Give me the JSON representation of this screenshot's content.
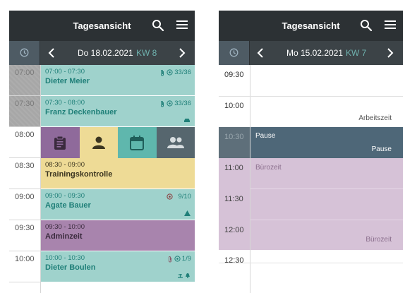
{
  "colors": {
    "topbar": "#2c3134",
    "navbar": "#3c4347",
    "kw": "#6fb1ae",
    "teal_appt": "#9fd2cc",
    "yellow_appt": "#eedb96",
    "purple_appt": "#a884ad",
    "pause_block": "#4e6778",
    "buero_block": "#d6c2d7"
  },
  "left": {
    "title": "Tagesansicht",
    "date": "Do 18.02.2021",
    "kw": "KW 8",
    "times": [
      "07:00",
      "07:30",
      "08:00",
      "08:30",
      "09:00",
      "09:30",
      "10:00"
    ],
    "appointments": [
      {
        "time": "07:00 - 07:30",
        "name": "Dieter Meier",
        "count": "33/36",
        "color": "teal"
      },
      {
        "time": "07:30 - 08:00",
        "name": "Franz Deckenbauer",
        "count": "33/36",
        "color": "teal"
      },
      {
        "time": "08:30 - 09:00",
        "name": "Trainingskontrolle",
        "count": "",
        "color": "yellow"
      },
      {
        "time": "09:00 - 09:30",
        "name": "Agate Bauer",
        "count": "9/10",
        "color": "teal"
      },
      {
        "time": "09:30 - 10:00",
        "name": "Adminzeit",
        "count": "",
        "color": "purple"
      },
      {
        "time": "10:00 - 10:30",
        "name": "Dieter Boulen",
        "count": "1/9",
        "color": "teal"
      }
    ],
    "actions": [
      {
        "icon": "clipboard-icon",
        "bg": "#8f6a9b"
      },
      {
        "icon": "person-icon",
        "bg": "#eedb96"
      },
      {
        "icon": "calendar-icon",
        "bg": "#5fb7ad"
      },
      {
        "icon": "group-icon",
        "bg": "#56666e"
      }
    ]
  },
  "right": {
    "title": "Tagesansicht",
    "date": "Mo 15.02.2021",
    "kw": "KW 7",
    "times": [
      "09:30",
      "10:00",
      "10:30",
      "11:00",
      "11:30",
      "12:00",
      "12:30"
    ],
    "arbeitszeit_label": "Arbeitszeit",
    "pause_title": "Pause",
    "pause_label": "Pause",
    "buero_title": "Bürozeit",
    "buero_label": "Bürozeit"
  }
}
